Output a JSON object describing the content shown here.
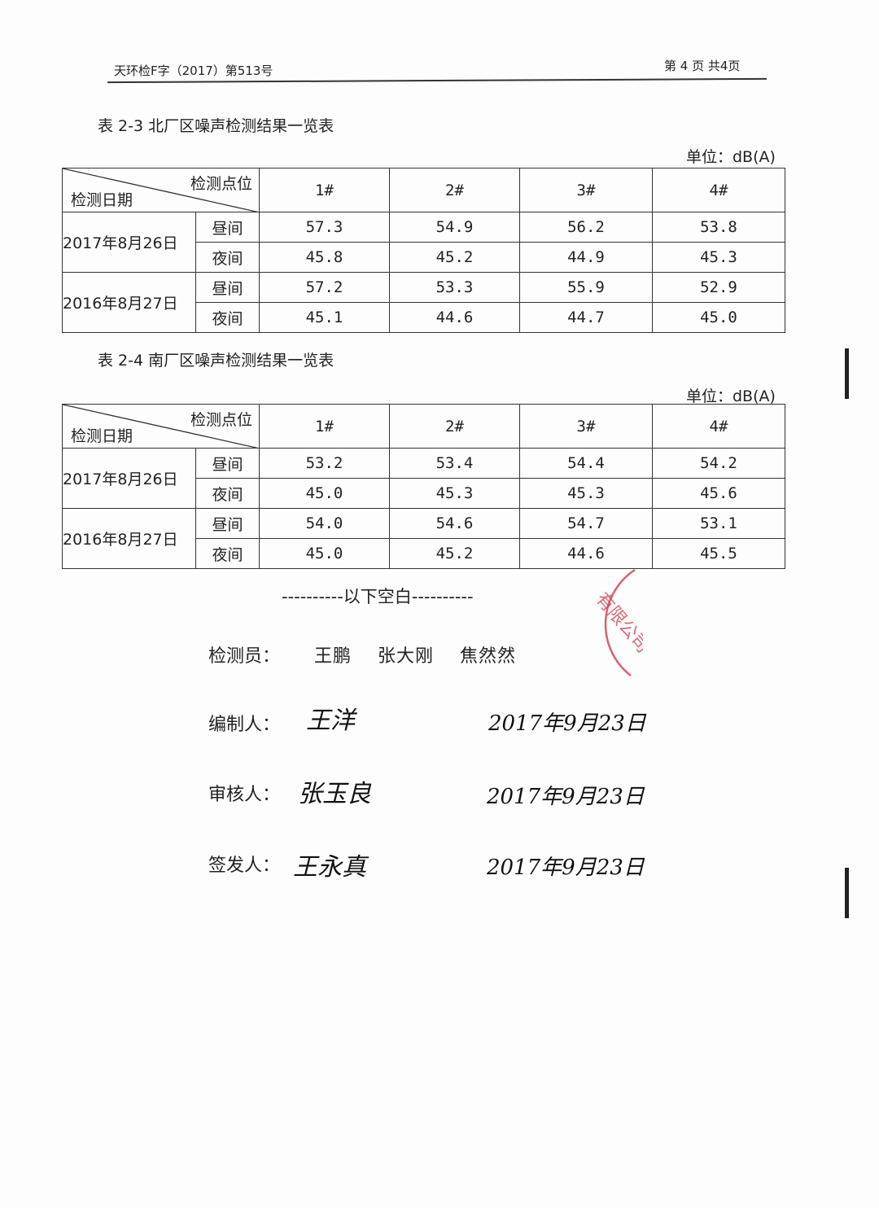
{
  "header": {
    "doc_number": "天环检F字（2017）第513号",
    "page_info": "第 4 页 共4页"
  },
  "table1": {
    "caption": "表 2-3  北厂区噪声检测结果一览表",
    "unit": "单位：dB(A)",
    "corner_top": "检测点位",
    "corner_bottom": "检测日期",
    "columns": [
      "1#",
      "2#",
      "3#",
      "4#"
    ],
    "groups": [
      {
        "date": "2017年8月26日",
        "rows": [
          {
            "period": "昼间",
            "values": [
              "57.3",
              "54.9",
              "56.2",
              "53.8"
            ]
          },
          {
            "period": "夜间",
            "values": [
              "45.8",
              "45.2",
              "44.9",
              "45.3"
            ]
          }
        ]
      },
      {
        "date": "2016年8月27日",
        "rows": [
          {
            "period": "昼间",
            "values": [
              "57.2",
              "53.3",
              "55.9",
              "52.9"
            ]
          },
          {
            "period": "夜间",
            "values": [
              "45.1",
              "44.6",
              "44.7",
              "45.0"
            ]
          }
        ]
      }
    ]
  },
  "table2": {
    "caption": "表 2-4  南厂区噪声检测结果一览表",
    "unit": "单位：dB(A)",
    "corner_top": "检测点位",
    "corner_bottom": "检测日期",
    "columns": [
      "1#",
      "2#",
      "3#",
      "4#"
    ],
    "groups": [
      {
        "date": "2017年8月26日",
        "rows": [
          {
            "period": "昼间",
            "values": [
              "53.2",
              "53.4",
              "54.4",
              "54.2"
            ]
          },
          {
            "period": "夜间",
            "values": [
              "45.0",
              "45.3",
              "45.3",
              "45.6"
            ]
          }
        ]
      },
      {
        "date": "2016年8月27日",
        "rows": [
          {
            "period": "昼间",
            "values": [
              "54.0",
              "54.6",
              "54.7",
              "53.1"
            ]
          },
          {
            "period": "夜间",
            "values": [
              "45.0",
              "45.2",
              "44.6",
              "45.5"
            ]
          }
        ]
      }
    ]
  },
  "blank_note": "----------以下空白----------",
  "inspectors": {
    "label": "检测员：",
    "names": "王鹏    张大刚    焦然然"
  },
  "signatures": [
    {
      "label": "编制人：",
      "signature": "王洋",
      "date": "2017年9月23日"
    },
    {
      "label": "审核人：",
      "signature": "张玉良",
      "date": "2017年9月23日"
    },
    {
      "label": "签发人：",
      "signature": "王永真",
      "date": "2017年9月23日"
    }
  ],
  "stamp": {
    "text": "有限公司",
    "color": "#d0394a"
  }
}
